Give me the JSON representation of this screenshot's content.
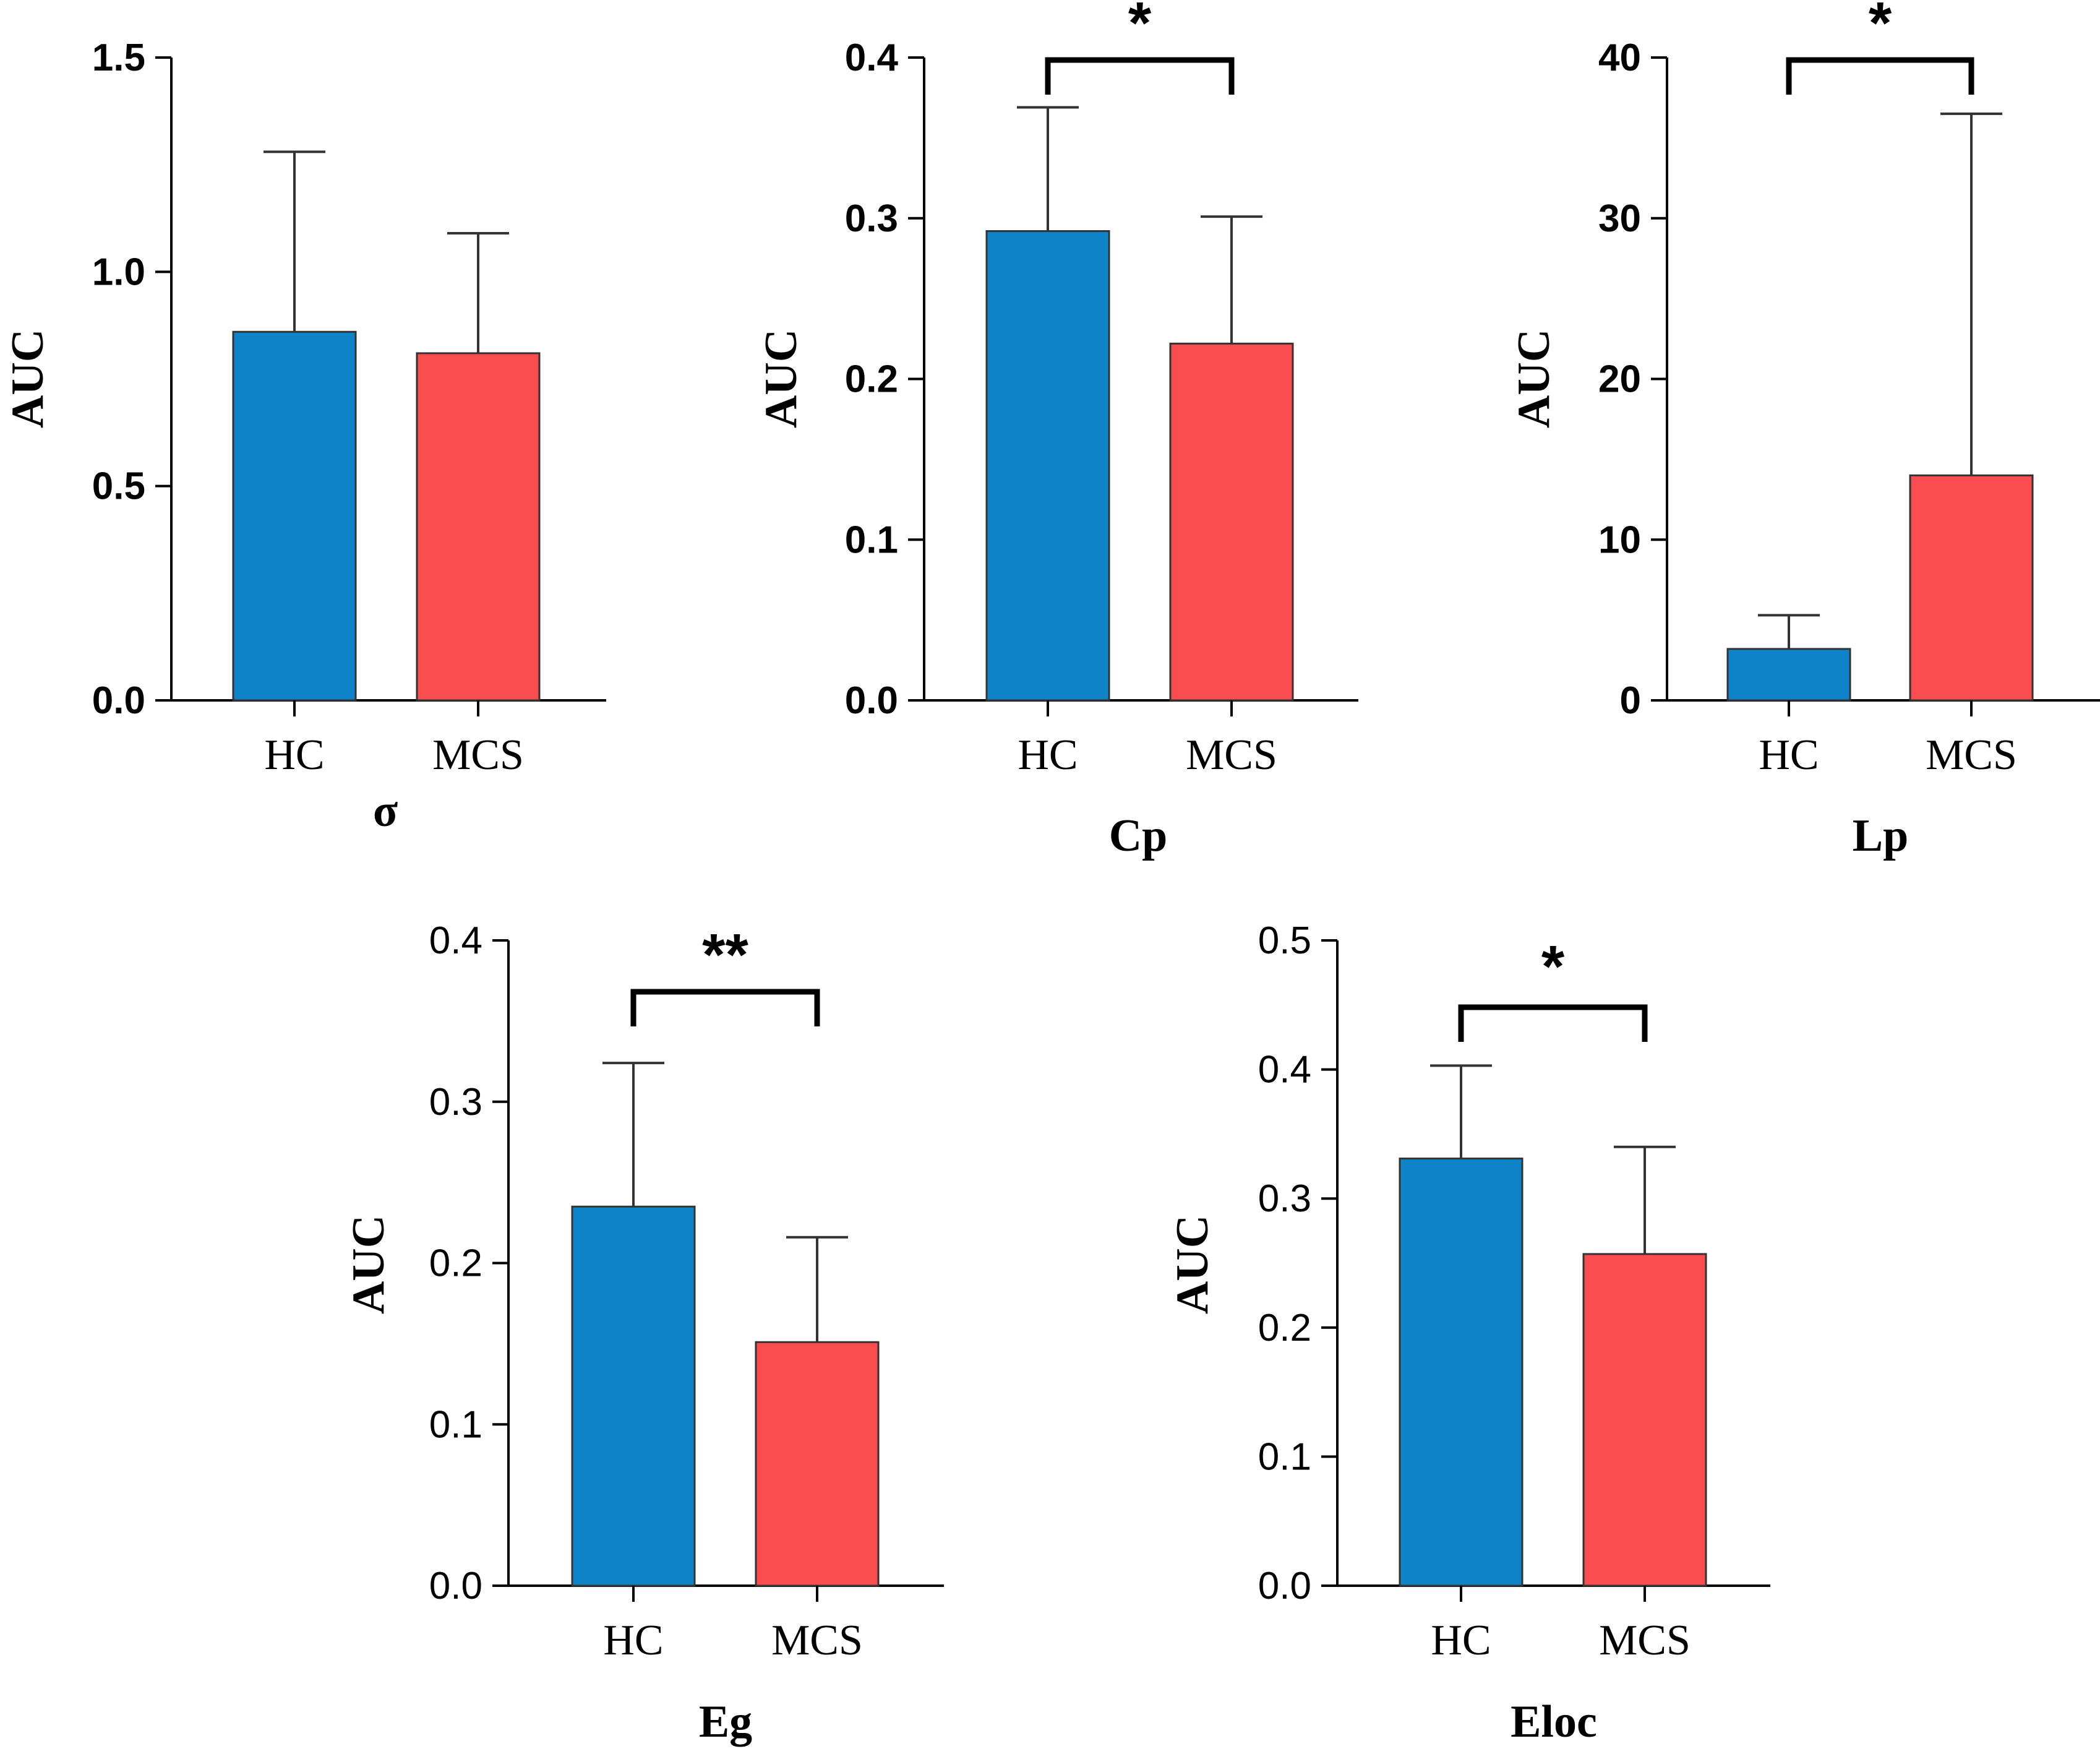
{
  "colors": {
    "hc": "#0f83c7",
    "mcs": "#f94d4f",
    "axis": "#000000",
    "error": "#333333"
  },
  "chart_data": [
    {
      "type": "bar",
      "title": "",
      "xlabel": "σ",
      "ylabel": "AUC",
      "categories": [
        "HC",
        "MCS"
      ],
      "values": [
        0.86,
        0.81
      ],
      "errors": [
        1.28,
        1.09
      ],
      "ylim": [
        0,
        1.5
      ],
      "yticks": [
        "0.0",
        "0.5",
        "1.0",
        "1.5"
      ],
      "tick_step": 0.5,
      "significance": ""
    },
    {
      "type": "bar",
      "title": "",
      "xlabel": "Cp",
      "ylabel": "AUC",
      "categories": [
        "HC",
        "MCS"
      ],
      "values": [
        0.292,
        0.222
      ],
      "errors": [
        0.369,
        0.301
      ],
      "ylim": [
        0,
        0.4
      ],
      "yticks": [
        "0.0",
        "0.1",
        "0.2",
        "0.3",
        "0.4"
      ],
      "tick_step": 0.1,
      "significance": "*"
    },
    {
      "type": "bar",
      "title": "",
      "xlabel": "Lp",
      "ylabel": "AUC",
      "categories": [
        "HC",
        "MCS"
      ],
      "values": [
        3.2,
        14.0
      ],
      "errors": [
        5.3,
        36.5
      ],
      "ylim": [
        0,
        40
      ],
      "yticks": [
        "0",
        "10",
        "20",
        "30",
        "40"
      ],
      "tick_step": 10,
      "significance": "*"
    },
    {
      "type": "bar",
      "title": "",
      "xlabel": "Eg",
      "ylabel": "AUC",
      "categories": [
        "HC",
        "MCS"
      ],
      "values": [
        0.235,
        0.151
      ],
      "errors": [
        0.324,
        0.216
      ],
      "ylim": [
        0,
        0.4
      ],
      "yticks": [
        "0.0",
        "0.1",
        "0.2",
        "0.3",
        "0.4"
      ],
      "tick_step": 0.1,
      "significance": "**"
    },
    {
      "type": "bar",
      "title": "",
      "xlabel": "Eloc",
      "ylabel": "AUC",
      "categories": [
        "HC",
        "MCS"
      ],
      "values": [
        0.331,
        0.257
      ],
      "errors": [
        0.403,
        0.34
      ],
      "ylim": [
        0,
        0.5
      ],
      "yticks": [
        "0.0",
        "0.1",
        "0.2",
        "0.3",
        "0.4",
        "0.5"
      ],
      "tick_step": 0.1,
      "significance": "*"
    }
  ]
}
